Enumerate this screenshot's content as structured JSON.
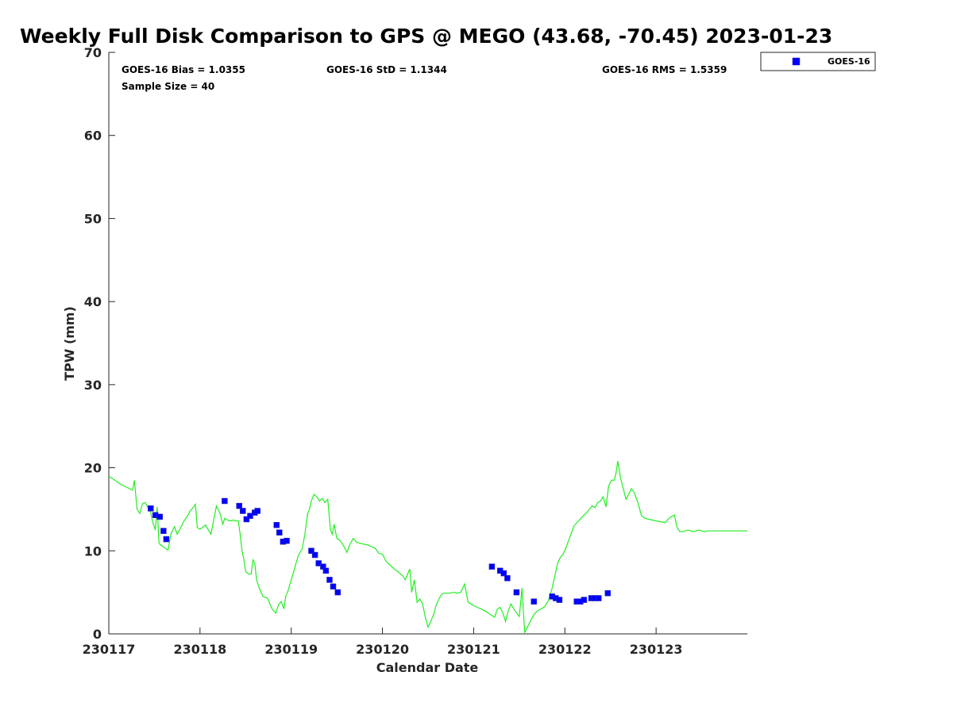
{
  "chart_data": {
    "type": "line",
    "title": "Weekly Full Disk Comparison to GPS @ MEGO (43.68, -70.45) 2023-01-23",
    "xlabel": "Calendar Date",
    "ylabel": "TPW (mm)",
    "xlim": [
      0,
      7
    ],
    "ylim": [
      0,
      70
    ],
    "x_ticks": [
      {
        "value": 0,
        "label": "230117"
      },
      {
        "value": 1,
        "label": "230118"
      },
      {
        "value": 2,
        "label": "230119"
      },
      {
        "value": 3,
        "label": "230120"
      },
      {
        "value": 4,
        "label": "230121"
      },
      {
        "value": 5,
        "label": "230122"
      },
      {
        "value": 6,
        "label": "230123"
      }
    ],
    "y_ticks": [
      {
        "value": 0,
        "label": "0"
      },
      {
        "value": 10,
        "label": "10"
      },
      {
        "value": 20,
        "label": "20"
      },
      {
        "value": 30,
        "label": "30"
      },
      {
        "value": 40,
        "label": "40"
      },
      {
        "value": 50,
        "label": "50"
      },
      {
        "value": 60,
        "label": "60"
      },
      {
        "value": 70,
        "label": "70"
      }
    ],
    "stats": {
      "bias": "GOES-16 Bias = 1.0355",
      "std": "GOES-16 StD = 1.1344",
      "rms": "GOES-16 RMS = 1.5359",
      "sample": "Sample Size = 40"
    },
    "legend": {
      "location": "top-right outside",
      "entries": [
        {
          "name": "GOES-16",
          "color": "#0000ff"
        }
      ]
    },
    "series": [
      {
        "name": "GPS",
        "color": "#22ee22",
        "x": [
          0.0,
          0.13,
          0.26,
          0.28,
          0.31,
          0.34,
          0.37,
          0.4,
          0.43,
          0.46,
          0.48,
          0.51,
          0.53,
          0.55,
          0.57,
          0.59,
          0.61,
          0.63,
          0.65,
          0.68,
          0.72,
          0.75,
          0.79,
          0.82,
          0.85,
          0.87,
          0.89,
          0.91,
          0.93,
          0.95,
          0.97,
          1.0,
          1.06,
          1.12,
          1.18,
          1.22,
          1.25,
          1.27,
          1.3,
          1.33,
          1.36,
          1.39,
          1.42,
          1.44,
          1.46,
          1.48,
          1.5,
          1.52,
          1.54,
          1.56,
          1.58,
          1.6,
          1.62,
          1.65,
          1.69,
          1.74,
          1.79,
          1.83,
          1.86,
          1.89,
          1.92,
          1.94,
          1.96,
          2.0,
          2.04,
          2.08,
          2.12,
          2.15,
          2.18,
          2.2,
          2.22,
          2.25,
          2.28,
          2.31,
          2.34,
          2.37,
          2.4,
          2.43,
          2.45,
          2.47,
          2.5,
          2.53,
          2.55,
          2.58,
          2.61,
          2.64,
          2.68,
          2.72,
          2.76,
          2.8,
          2.84,
          2.88,
          2.92,
          2.96,
          3.0,
          3.04,
          3.08,
          3.11,
          3.14,
          3.17,
          3.2,
          3.22,
          3.25,
          3.28,
          3.3,
          3.32,
          3.35,
          3.38,
          3.41,
          3.44,
          3.47,
          3.5,
          3.53,
          3.56,
          3.59,
          3.62,
          3.65,
          3.68,
          3.71,
          3.74,
          3.78,
          3.82,
          3.86,
          3.9,
          3.94,
          3.97,
          4.0,
          4.04,
          4.08,
          4.12,
          4.16,
          4.2,
          4.23,
          4.26,
          4.29,
          4.32,
          4.35,
          4.38,
          4.41,
          4.44,
          4.47,
          4.5,
          4.53,
          4.56,
          4.59,
          4.62,
          4.66,
          4.7,
          4.74,
          4.78,
          4.82,
          4.86,
          4.89,
          4.92,
          4.95,
          4.98,
          5.01,
          5.05,
          5.1,
          5.15,
          5.2,
          5.24,
          5.27,
          5.3,
          5.33,
          5.36,
          5.39,
          5.42,
          5.45,
          5.48,
          5.51,
          5.54,
          5.56,
          5.58,
          5.61,
          5.64,
          5.67,
          5.7,
          5.73,
          5.76,
          5.8,
          5.84,
          5.88,
          5.92,
          5.96,
          6.0,
          6.05,
          6.1,
          6.15,
          6.2,
          6.23,
          6.26,
          6.29,
          6.32,
          6.35,
          6.38,
          6.41,
          6.44,
          6.47,
          6.5,
          6.53,
          6.56,
          6.59,
          6.62,
          6.65,
          6.68,
          6.71,
          6.74,
          6.77,
          6.8,
          6.84,
          6.88,
          6.92,
          6.95,
          6.97,
          7.0
        ],
        "y": [
          19.0,
          18.0,
          17.3,
          18.5,
          15.0,
          14.5,
          15.7,
          15.8,
          15.2,
          14.6,
          13.5,
          12.5,
          15.3,
          10.9,
          10.7,
          10.5,
          10.4,
          10.2,
          10.1,
          12.0,
          12.9,
          12.0,
          12.8,
          13.5,
          14.0,
          14.3,
          14.8,
          15.0,
          15.3,
          15.6,
          12.8,
          12.6,
          13.1,
          12.0,
          15.4,
          14.5,
          13.2,
          13.9,
          13.7,
          13.6,
          13.7,
          13.6,
          13.6,
          12.0,
          10.0,
          9.0,
          7.5,
          7.3,
          7.2,
          7.2,
          8.9,
          8.5,
          6.5,
          5.5,
          4.5,
          4.3,
          3.0,
          2.5,
          3.5,
          3.9,
          3.0,
          4.5,
          5.0,
          6.5,
          8.0,
          9.5,
          10.2,
          12.0,
          14.5,
          15.0,
          16.0,
          16.8,
          16.5,
          16.0,
          16.3,
          15.8,
          16.2,
          12.5,
          12.0,
          13.2,
          11.5,
          11.3,
          11.0,
          10.5,
          9.8,
          10.7,
          11.5,
          11.0,
          10.9,
          10.8,
          10.7,
          10.5,
          10.3,
          9.7,
          9.6,
          8.7,
          8.3,
          8.0,
          7.7,
          7.5,
          7.2,
          7.0,
          6.5,
          7.3,
          7.8,
          5.0,
          6.5,
          3.8,
          4.2,
          3.6,
          2.0,
          0.8,
          1.5,
          2.3,
          3.5,
          4.2,
          4.8,
          4.9,
          4.9,
          4.9,
          5.0,
          4.9,
          5.0,
          6.0,
          3.8,
          3.6,
          3.4,
          3.2,
          3.0,
          2.8,
          2.5,
          2.2,
          2.0,
          3.0,
          3.2,
          2.5,
          1.5,
          2.8,
          3.6,
          3.0,
          2.5,
          2.1,
          5.5,
          0.2,
          0.8,
          1.5,
          2.3,
          2.8,
          3.0,
          3.3,
          4.0,
          5.5,
          7.0,
          8.5,
          9.2,
          9.6,
          10.3,
          11.5,
          13.0,
          13.6,
          14.2,
          14.6,
          15.0,
          15.4,
          15.2,
          15.8,
          16.0,
          16.5,
          15.3,
          17.8,
          18.5,
          18.5,
          19.3,
          20.8,
          18.8,
          17.5,
          16.2,
          16.8,
          17.5,
          17.0,
          15.8,
          14.2,
          13.9,
          13.8,
          13.7,
          13.6,
          13.5,
          13.4,
          14.0,
          14.3,
          12.8,
          12.3,
          12.3,
          12.4,
          12.5,
          12.4,
          12.3,
          12.4,
          12.5,
          12.4,
          12.3,
          12.4,
          12.4,
          12.4,
          12.4,
          12.4,
          12.4,
          12.4,
          12.4,
          12.4,
          12.4,
          12.4,
          12.4,
          12.4,
          12.4,
          12.4
        ]
      },
      {
        "name": "GOES-16",
        "color": "#0000ff",
        "marker": "square",
        "x": [
          0.46,
          0.51,
          0.56,
          0.6,
          0.63,
          1.27,
          1.43,
          1.47,
          1.51,
          1.55,
          1.6,
          1.63,
          1.84,
          1.87,
          1.91,
          1.95,
          2.22,
          2.26,
          2.3,
          2.35,
          2.38,
          2.42,
          2.46,
          2.51,
          4.2,
          4.29,
          4.33,
          4.37,
          4.47,
          4.66,
          4.86,
          4.9,
          4.94,
          5.13,
          5.17,
          5.21,
          5.29,
          5.33,
          5.37,
          5.47
        ],
        "y": [
          15.1,
          14.3,
          14.1,
          12.4,
          11.4,
          16.0,
          15.4,
          14.8,
          13.8,
          14.2,
          14.6,
          14.8,
          13.1,
          12.2,
          11.1,
          11.2,
          10.0,
          9.5,
          8.5,
          8.1,
          7.6,
          6.5,
          5.7,
          5.0,
          8.1,
          7.6,
          7.3,
          6.7,
          5.0,
          3.9,
          4.5,
          4.3,
          4.1,
          3.9,
          3.9,
          4.1,
          4.3,
          4.3,
          4.3,
          4.9
        ]
      }
    ]
  }
}
